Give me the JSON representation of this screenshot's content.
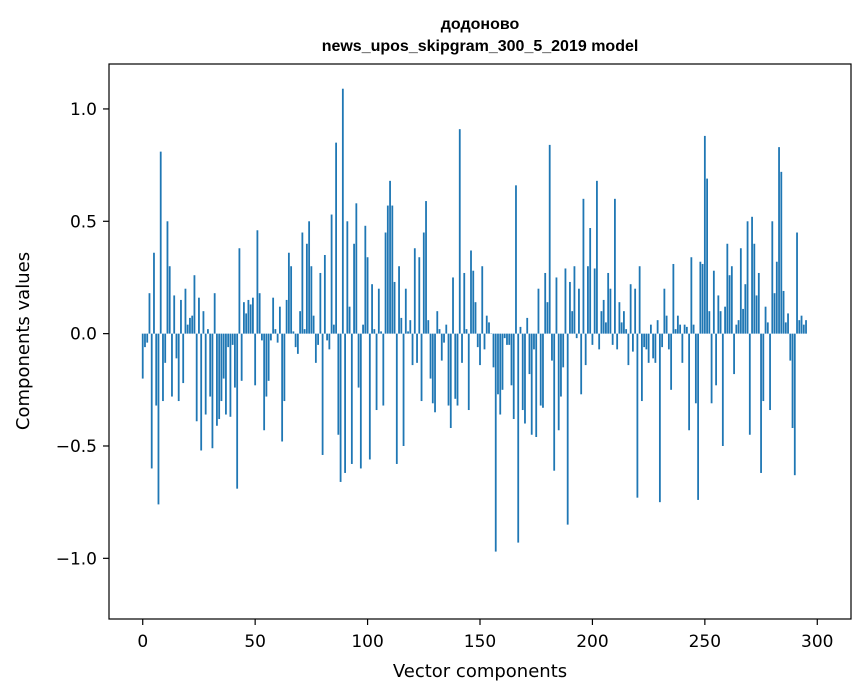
{
  "chart_data": {
    "type": "bar",
    "title": "додоново",
    "subtitle": "news_upos_skipgram_300_5_2019 model",
    "xlabel": "Vector components",
    "ylabel": "Components values",
    "xlim": [
      -15,
      315
    ],
    "ylim": [
      -1.27,
      1.2
    ],
    "x_ticks": [
      {
        "value": 0,
        "label": "0"
      },
      {
        "value": 50,
        "label": "50"
      },
      {
        "value": 100,
        "label": "100"
      },
      {
        "value": 150,
        "label": "150"
      },
      {
        "value": 200,
        "label": "200"
      },
      {
        "value": 250,
        "label": "250"
      },
      {
        "value": 300,
        "label": "300"
      }
    ],
    "y_ticks": [
      {
        "value": 1.0,
        "label": "1.0"
      },
      {
        "value": 0.5,
        "label": "0.5"
      },
      {
        "value": 0.0,
        "label": "0.0"
      },
      {
        "value": -0.5,
        "label": "−0.5"
      },
      {
        "value": -1.0,
        "label": "−1.0"
      }
    ],
    "grid": false,
    "bar_color": "#1f77b4",
    "series": [
      {
        "values": [
          -0.2,
          -0.06,
          -0.04,
          0.18,
          -0.6,
          0.36,
          -0.32,
          -0.76,
          0.81,
          -0.3,
          -0.13,
          0.5,
          0.3,
          -0.28,
          0.17,
          -0.11,
          -0.3,
          0.15,
          -0.22,
          0.2,
          0.04,
          0.07,
          0.08,
          0.26,
          -0.39,
          0.16,
          -0.52,
          0.1,
          -0.36,
          0.02,
          -0.28,
          -0.51,
          0.18,
          -0.41,
          -0.38,
          -0.3,
          -0.2,
          -0.36,
          -0.06,
          -0.37,
          -0.05,
          -0.24,
          -0.69,
          0.38,
          -0.21,
          0.14,
          0.09,
          0.15,
          0.13,
          0.16,
          -0.23,
          0.46,
          0.18,
          -0.03,
          -0.43,
          -0.28,
          -0.21,
          -0.03,
          0.16,
          0.02,
          -0.04,
          0.12,
          -0.48,
          -0.3,
          0.15,
          0.36,
          0.3,
          0.01,
          -0.06,
          -0.09,
          0.1,
          0.45,
          0.02,
          0.4,
          0.5,
          0.3,
          0.08,
          -0.13,
          -0.05,
          0.27,
          -0.54,
          0.35,
          -0.03,
          -0.07,
          0.53,
          0.04,
          0.85,
          -0.45,
          -0.66,
          1.09,
          -0.62,
          0.5,
          0.12,
          -0.58,
          0.4,
          0.58,
          -0.24,
          -0.6,
          0.04,
          0.48,
          0.34,
          -0.56,
          0.22,
          0.02,
          -0.34,
          0.2,
          0.01,
          -0.32,
          0.45,
          0.57,
          0.68,
          0.57,
          0.23,
          -0.58,
          0.3,
          0.07,
          -0.5,
          0.2,
          0.01,
          0.06,
          -0.14,
          0.38,
          -0.13,
          0.34,
          -0.3,
          0.45,
          0.59,
          0.06,
          -0.2,
          -0.31,
          -0.35,
          0.1,
          0.02,
          -0.12,
          -0.04,
          0.04,
          -0.32,
          -0.42,
          0.25,
          -0.29,
          -0.32,
          0.91,
          -0.13,
          0.27,
          0.02,
          -0.34,
          0.37,
          0.28,
          0.14,
          -0.06,
          -0.14,
          0.3,
          -0.07,
          0.08,
          0.05,
          0.0,
          -0.15,
          -0.97,
          -0.27,
          -0.36,
          -0.25,
          -0.02,
          -0.05,
          -0.05,
          -0.23,
          -0.38,
          0.66,
          -0.93,
          0.03,
          -0.34,
          -0.4,
          0.07,
          -0.18,
          -0.45,
          -0.07,
          -0.46,
          0.2,
          -0.32,
          -0.33,
          0.27,
          0.14,
          0.84,
          -0.12,
          -0.61,
          0.25,
          -0.43,
          -0.28,
          -0.15,
          0.29,
          -0.85,
          0.23,
          0.1,
          0.3,
          -0.02,
          0.2,
          -0.27,
          0.6,
          -0.14,
          0.3,
          0.47,
          -0.05,
          0.29,
          0.68,
          -0.07,
          0.1,
          0.15,
          0.05,
          0.27,
          0.2,
          -0.05,
          0.6,
          -0.07,
          0.14,
          0.05,
          0.1,
          0.02,
          -0.14,
          0.22,
          -0.08,
          0.2,
          -0.73,
          0.3,
          -0.3,
          -0.06,
          -0.07,
          -0.13,
          0.04,
          -0.11,
          -0.13,
          0.06,
          -0.75,
          -0.06,
          0.2,
          0.08,
          -0.07,
          -0.25,
          0.31,
          0.02,
          0.08,
          0.04,
          -0.13,
          0.04,
          0.03,
          -0.43,
          0.34,
          0.04,
          -0.31,
          -0.74,
          0.32,
          0.31,
          0.88,
          0.69,
          0.1,
          -0.31,
          0.28,
          -0.23,
          0.17,
          0.1,
          -0.5,
          0.12,
          0.4,
          0.26,
          0.3,
          -0.18,
          0.04,
          0.06,
          0.38,
          0.11,
          0.22,
          0.5,
          -0.45,
          0.52,
          0.4,
          0.17,
          0.27,
          -0.62,
          -0.3,
          0.12,
          0.05,
          -0.34,
          0.5,
          0.18,
          0.32,
          0.83,
          0.72,
          0.19,
          0.05,
          0.09,
          -0.12,
          -0.42,
          -0.63,
          0.45,
          0.06,
          0.08,
          0.04,
          0.06
        ]
      }
    ]
  }
}
